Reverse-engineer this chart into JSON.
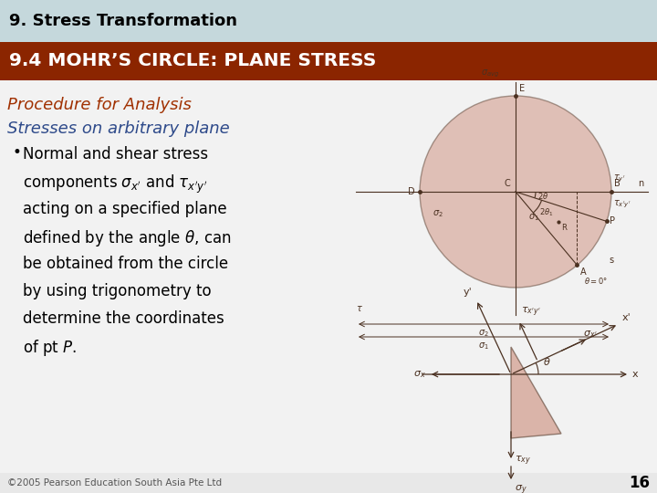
{
  "title_top": "9. Stress Transformation",
  "title_top_bg": "#c5d8dc",
  "title_top_color": "#000000",
  "title_main": "9.4 MOHR’S CIRCLE: PLANE STRESS",
  "title_main_bg": "#8b2500",
  "title_main_color": "#ffffff",
  "body_bg": "#e8e8e8",
  "heading1_color": "#a03000",
  "heading1_text": "Procedure for Analysis",
  "heading2_color": "#2e4a8a",
  "heading2_text": "Stresses on arbitrary plane",
  "footer_text": "©2005 Pearson Education South Asia Pte Ltd",
  "page_number": "16",
  "circle_fill": "#c8826e",
  "circle_fill_alpha": 0.45,
  "diagram_line_color": "#4a3020",
  "stress_element_fill": "#c8826e"
}
